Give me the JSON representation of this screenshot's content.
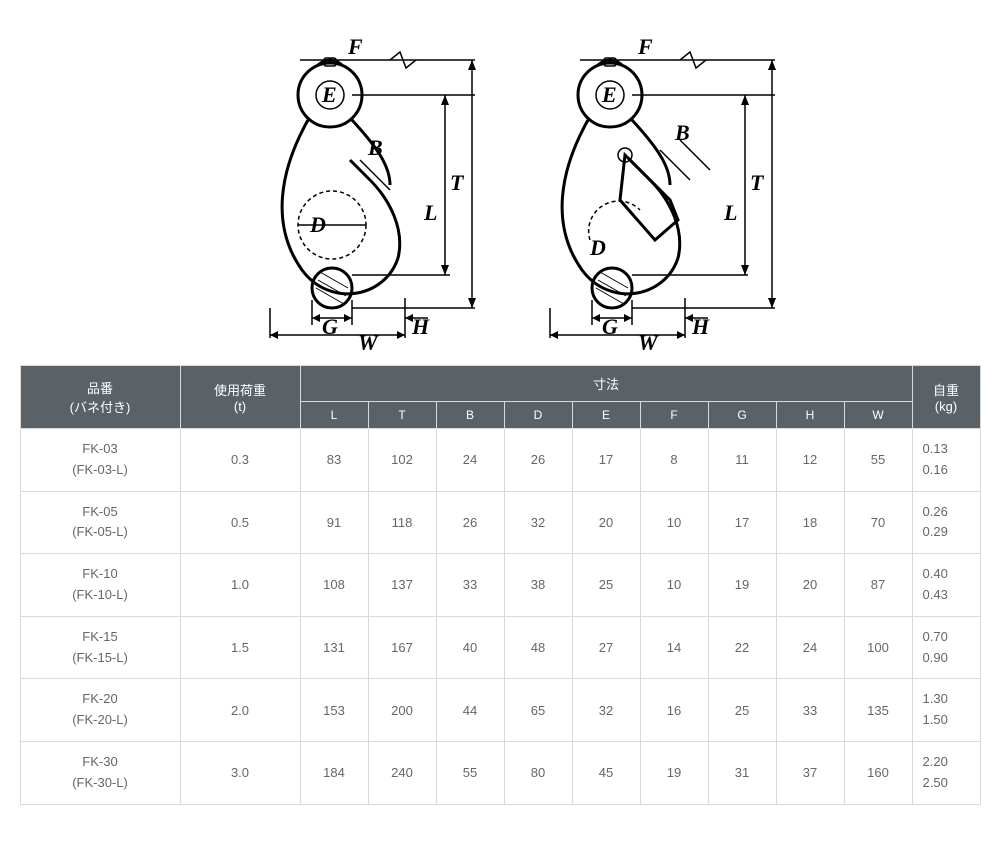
{
  "diagram": {
    "labels": {
      "F": "F",
      "E": "E",
      "B": "B",
      "T": "T",
      "L": "L",
      "D": "D",
      "G": "G",
      "W": "W",
      "H": "H"
    }
  },
  "table": {
    "header": {
      "part": "品番",
      "part_sub": "(バネ付き)",
      "load": "使用荷重",
      "load_unit": "(t)",
      "dimensions": "寸法",
      "weight": "自重",
      "weight_unit": "(kg)",
      "dims": {
        "L": "L",
        "T": "T",
        "B": "B",
        "D": "D",
        "E": "E",
        "F": "F",
        "G": "G",
        "H": "H",
        "W": "W"
      }
    },
    "rows": [
      {
        "pn": "FK-03",
        "pn2": "(FK-03-L)",
        "load": "0.3",
        "L": "83",
        "T": "102",
        "B": "24",
        "D": "26",
        "E": "17",
        "F": "8",
        "G": "11",
        "H": "12",
        "W": "55",
        "w1": "0.13",
        "w2": "0.16"
      },
      {
        "pn": "FK-05",
        "pn2": "(FK-05-L)",
        "load": "0.5",
        "L": "91",
        "T": "118",
        "B": "26",
        "D": "32",
        "E": "20",
        "F": "10",
        "G": "17",
        "H": "18",
        "W": "70",
        "w1": "0.26",
        "w2": "0.29"
      },
      {
        "pn": "FK-10",
        "pn2": "(FK-10-L)",
        "load": "1.0",
        "L": "108",
        "T": "137",
        "B": "33",
        "D": "38",
        "E": "25",
        "F": "10",
        "G": "19",
        "H": "20",
        "W": "87",
        "w1": "0.40",
        "w2": "0.43"
      },
      {
        "pn": "FK-15",
        "pn2": "(FK-15-L)",
        "load": "1.5",
        "L": "131",
        "T": "167",
        "B": "40",
        "D": "48",
        "E": "27",
        "F": "14",
        "G": "22",
        "H": "24",
        "W": "100",
        "w1": "0.70",
        "w2": "0.90"
      },
      {
        "pn": "FK-20",
        "pn2": "(FK-20-L)",
        "load": "2.0",
        "L": "153",
        "T": "200",
        "B": "44",
        "D": "65",
        "E": "32",
        "F": "16",
        "G": "25",
        "H": "33",
        "W": "135",
        "w1": "1.30",
        "w2": "1.50"
      },
      {
        "pn": "FK-30",
        "pn2": "(FK-30-L)",
        "load": "3.0",
        "L": "184",
        "T": "240",
        "B": "55",
        "D": "80",
        "E": "45",
        "F": "19",
        "G": "31",
        "H": "37",
        "W": "160",
        "w1": "2.20",
        "w2": "2.50"
      }
    ]
  },
  "colors": {
    "header_bg": "#5a6268",
    "header_fg": "#ffffff",
    "border": "#d9d9d9",
    "body_fg": "#666666"
  }
}
